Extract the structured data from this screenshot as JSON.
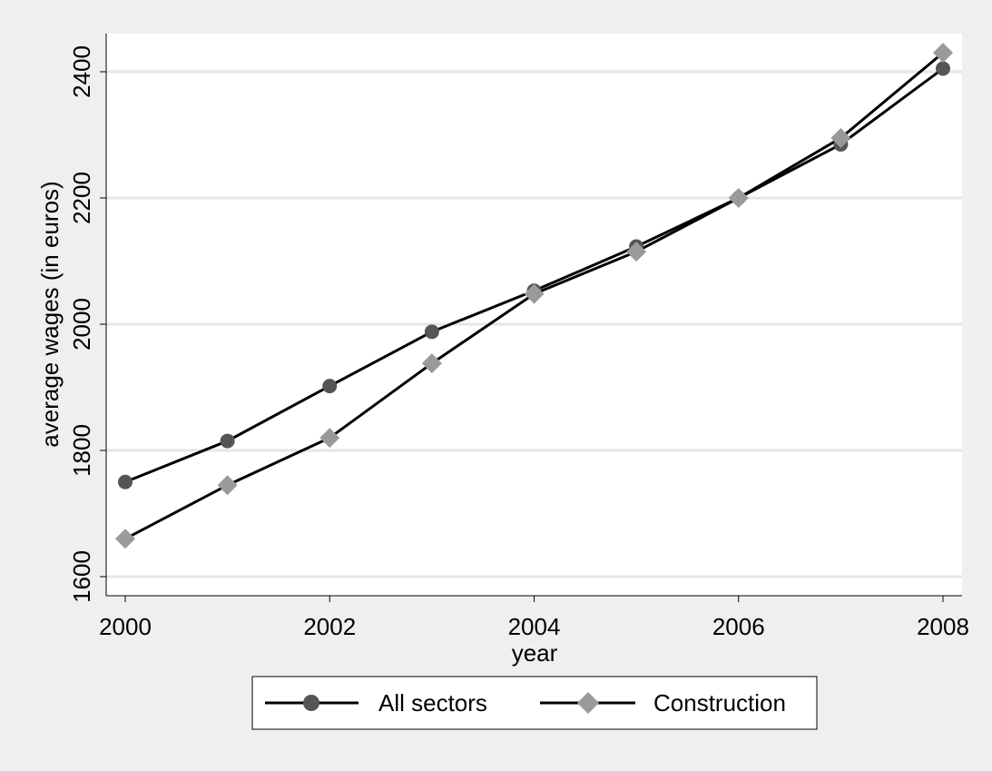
{
  "chart_data": {
    "type": "line",
    "title": "",
    "xlabel": "year",
    "ylabel": "average wages (in euros)",
    "x": [
      2000,
      2001,
      2002,
      2003,
      2004,
      2005,
      2006,
      2007,
      2008
    ],
    "xticks": [
      "2000",
      "2002",
      "2004",
      "2006",
      "2008"
    ],
    "yticks": [
      "1600",
      "1800",
      "2000",
      "2200",
      "2400"
    ],
    "xlim": [
      2000,
      2008
    ],
    "ylim": [
      1600,
      2460
    ],
    "grid": true,
    "legend_position": "bottom",
    "series": [
      {
        "name": "All sectors",
        "values": [
          1750,
          1815,
          1902,
          1988,
          2053,
          2123,
          2200,
          2285,
          2405
        ],
        "marker": "circle",
        "marker_color": "#555555",
        "line_color": "#000000"
      },
      {
        "name": "Construction",
        "values": [
          1660,
          1745,
          1820,
          1938,
          2048,
          2115,
          2200,
          2295,
          2430
        ],
        "marker": "diamond",
        "marker_color": "#9a9a9a",
        "line_color": "#000000"
      }
    ]
  }
}
